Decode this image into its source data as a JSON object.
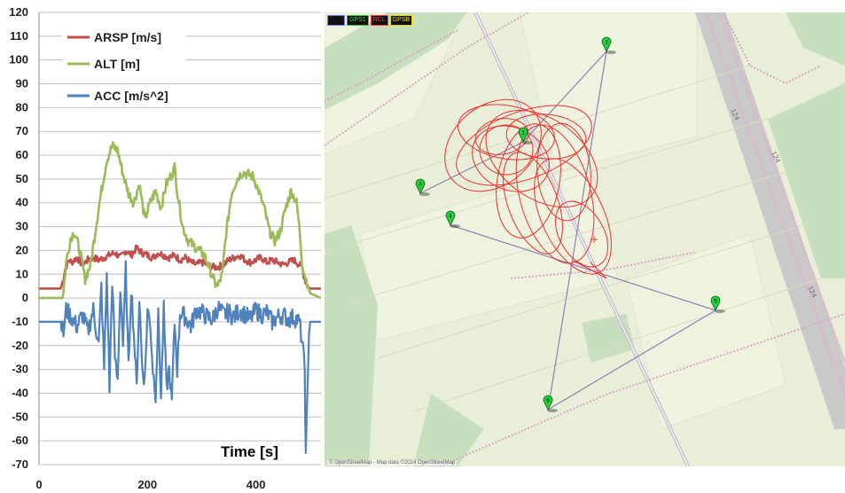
{
  "chart_data": {
    "type": "line",
    "xlim": [
      0,
      520
    ],
    "ylim": [
      -70,
      120
    ],
    "x_ticks": [
      "0",
      "200",
      "400"
    ],
    "y_ticks": [
      "120",
      "110",
      "100",
      "90",
      "80",
      "70",
      "60",
      "50",
      "40",
      "30",
      "20",
      "10",
      "0",
      "-10",
      "-20",
      "-30",
      "-40",
      "-50",
      "-60",
      "-70"
    ],
    "xlabel": "Time [s]",
    "grid": "horizontal",
    "legend_position": "top",
    "series": [
      {
        "name": "ARSP [m/s]",
        "color": "#c0504d",
        "x": [
          0,
          40,
          45,
          48,
          55,
          60,
          70,
          80,
          90,
          100,
          110,
          120,
          130,
          140,
          150,
          160,
          170,
          180,
          190,
          200,
          210,
          220,
          230,
          240,
          250,
          260,
          270,
          280,
          290,
          300,
          310,
          320,
          330,
          340,
          350,
          360,
          370,
          380,
          390,
          400,
          410,
          420,
          430,
          440,
          450,
          460,
          470,
          480,
          485,
          490,
          495,
          500,
          520
        ],
        "y": [
          4,
          4,
          8,
          12,
          16,
          15,
          17,
          14,
          16,
          17,
          16,
          17,
          18,
          19,
          17,
          20,
          18,
          21,
          19,
          18,
          17,
          19,
          18,
          17,
          18,
          16,
          17,
          15,
          14,
          15,
          14,
          13,
          13,
          14,
          16,
          17,
          18,
          16,
          15,
          16,
          17,
          15,
          16,
          15,
          14,
          15,
          16,
          14,
          13,
          8,
          5,
          4,
          4
        ]
      },
      {
        "name": "ALT [m]",
        "color": "#9bbb59",
        "x": [
          0,
          40,
          45,
          50,
          58,
          65,
          75,
          85,
          95,
          105,
          115,
          125,
          135,
          145,
          155,
          165,
          175,
          185,
          195,
          205,
          215,
          225,
          235,
          245,
          250,
          255,
          265,
          275,
          285,
          295,
          305,
          315,
          325,
          330,
          338,
          345,
          355,
          365,
          375,
          385,
          395,
          405,
          415,
          425,
          435,
          445,
          455,
          465,
          475,
          480,
          485,
          490,
          500,
          520
        ],
        "y": [
          0,
          0,
          2,
          15,
          25,
          28,
          20,
          8,
          14,
          30,
          45,
          58,
          64,
          62,
          52,
          44,
          40,
          48,
          33,
          40,
          45,
          38,
          48,
          52,
          55,
          45,
          30,
          24,
          22,
          20,
          18,
          12,
          6,
          5,
          10,
          27,
          44,
          50,
          53,
          52,
          51,
          45,
          38,
          28,
          24,
          28,
          38,
          45,
          40,
          30,
          15,
          10,
          2,
          0
        ]
      },
      {
        "name": "ACC [m/s^2]",
        "color": "#4f81bd",
        "x": [
          0,
          40,
          45,
          50,
          60,
          70,
          80,
          90,
          100,
          110,
          115,
          120,
          125,
          130,
          135,
          140,
          145,
          150,
          155,
          160,
          165,
          170,
          175,
          180,
          185,
          190,
          195,
          200,
          205,
          210,
          215,
          220,
          225,
          230,
          235,
          240,
          245,
          250,
          255,
          260,
          270,
          280,
          290,
          300,
          310,
          320,
          330,
          340,
          350,
          360,
          370,
          380,
          390,
          400,
          410,
          420,
          430,
          440,
          450,
          460,
          470,
          480,
          485,
          490,
          492,
          495,
          498,
          500,
          505,
          520
        ],
        "y": [
          -10,
          -10,
          -15,
          -5,
          -8,
          -12,
          -7,
          -14,
          -5,
          -20,
          5,
          -30,
          10,
          -38,
          8,
          -25,
          -35,
          5,
          -20,
          12,
          -30,
          5,
          -15,
          -38,
          0,
          -28,
          -35,
          -5,
          -10,
          -30,
          -40,
          -8,
          -42,
          -5,
          -38,
          -30,
          -44,
          -10,
          -30,
          -6,
          -8,
          -12,
          -5,
          -6,
          -8,
          -9,
          -4,
          -7,
          -6,
          -8,
          -5,
          -7,
          -9,
          -5,
          -7,
          -6,
          -10,
          -8,
          -7,
          -9,
          -8,
          -10,
          -18,
          -30,
          -68,
          -40,
          -15,
          -10,
          -10,
          -10
        ]
      }
    ]
  },
  "map": {
    "status_indicators": [
      {
        "label": "",
        "color": "#7d7dff"
      },
      {
        "label": "GPS1",
        "color": "#2ecc40"
      },
      {
        "label": "RCL",
        "color": "#ff3b3b"
      },
      {
        "label": "GPSB",
        "color": "#e6d800"
      }
    ],
    "attribution": "© OpenStreetMap - Map data ©2024 OpenStreetMap",
    "road_labels": [
      "124",
      "124",
      "124"
    ],
    "waypoint_labels": [
      "1",
      "2",
      "3",
      "4",
      "5",
      "6"
    ],
    "track_color": "#e8322f",
    "route_color": "#8e7fb0"
  }
}
